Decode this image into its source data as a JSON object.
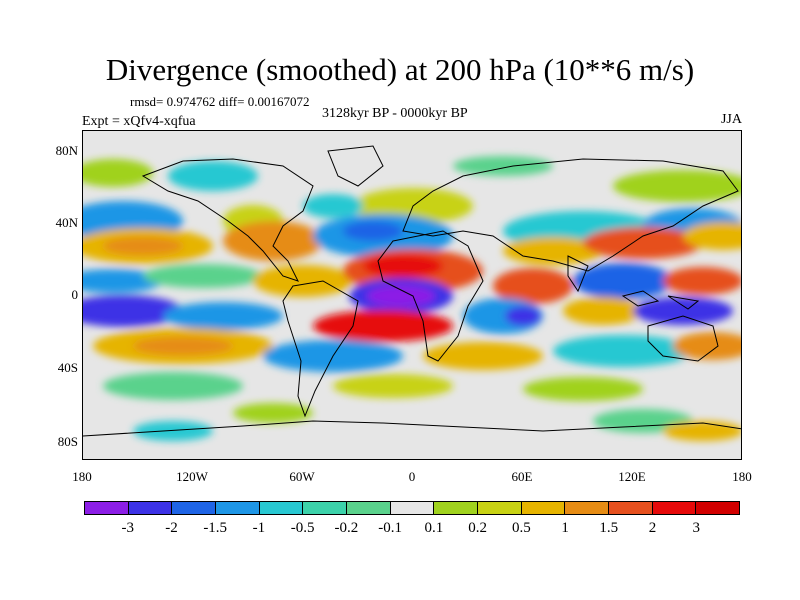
{
  "title": "Divergence (smoothed) at 200 hPa (10**6 m/s)",
  "stats_line": "rmsd= 0.974762 diff= 0.00167072",
  "experiment": "Expt = xQfv4-xqfua",
  "period": "3128kyr BP - 0000kyr BP",
  "season": "JJA",
  "y_axis_ticks": [
    "80N",
    "40N",
    "0",
    "40S",
    "80S"
  ],
  "x_axis_ticks": [
    "180",
    "120W",
    "60W",
    "0",
    "60E",
    "120E",
    "180"
  ],
  "colorbar": {
    "labels": [
      "-3",
      "-2",
      "-1.5",
      "-1",
      "-0.5",
      "-0.2",
      "-0.1",
      "0.1",
      "0.2",
      "0.5",
      "1",
      "1.5",
      "2",
      "3"
    ],
    "colors": [
      "#8c1ee6",
      "#3c32e6",
      "#1e64e6",
      "#1e96e6",
      "#28c8d2",
      "#3cd2aa",
      "#5ad28c",
      "#e6e6e6",
      "#a0d21e",
      "#c8d214",
      "#e6b400",
      "#e68c14",
      "#e6501e",
      "#e60a0a",
      "#d20000"
    ]
  },
  "map": {
    "background_color": "#e6e6e6",
    "coastline_color": "#000000"
  }
}
